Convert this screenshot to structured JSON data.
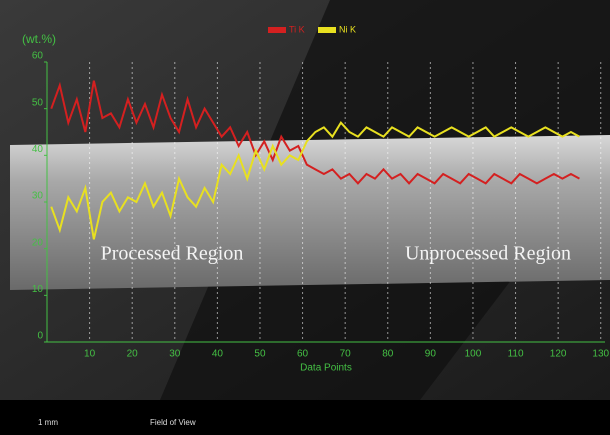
{
  "chart_data": {
    "type": "line",
    "y_label": "(wt.%)",
    "x_label": "Data Points",
    "x": [
      1,
      3,
      5,
      7,
      9,
      11,
      13,
      15,
      17,
      19,
      21,
      23,
      25,
      27,
      29,
      31,
      33,
      35,
      37,
      39,
      41,
      43,
      45,
      47,
      49,
      51,
      53,
      55,
      57,
      59,
      61,
      63,
      65,
      67,
      69,
      71,
      73,
      75,
      77,
      79,
      81,
      83,
      85,
      87,
      89,
      91,
      93,
      95,
      97,
      99,
      101,
      103,
      105,
      107,
      109,
      111,
      113,
      115,
      117,
      119,
      121,
      123,
      125
    ],
    "series": [
      {
        "name": "Ti K",
        "color": "#d42020",
        "values": [
          50,
          55,
          47,
          52,
          45,
          56,
          48,
          49,
          46,
          52,
          47,
          51,
          46,
          53,
          48,
          45,
          52,
          46,
          50,
          47,
          44,
          46,
          42,
          45,
          40,
          43,
          39,
          44,
          41,
          42,
          38,
          37,
          36,
          37,
          35,
          36,
          34,
          36,
          35,
          37,
          35,
          36,
          34,
          36,
          35,
          34,
          36,
          35,
          34,
          36,
          35,
          34,
          36,
          35,
          34,
          36,
          35,
          34,
          35,
          36,
          35,
          36,
          35
        ]
      },
      {
        "name": "Ni K",
        "color": "#e8e020",
        "values": [
          29,
          24,
          31,
          28,
          33,
          22,
          30,
          32,
          28,
          31,
          30,
          34,
          29,
          32,
          27,
          35,
          31,
          29,
          33,
          30,
          38,
          36,
          40,
          35,
          41,
          37,
          42,
          38,
          40,
          39,
          43,
          45,
          46,
          44,
          47,
          45,
          44,
          46,
          45,
          44,
          46,
          45,
          44,
          46,
          45,
          44,
          45,
          46,
          45,
          44,
          45,
          46,
          44,
          45,
          46,
          45,
          44,
          45,
          46,
          45,
          44,
          45,
          44
        ]
      }
    ],
    "xlim": [
      0,
      131
    ],
    "xticks": [
      10,
      20,
      30,
      40,
      50,
      60,
      70,
      80,
      90,
      100,
      110,
      120,
      130
    ],
    "ylim": [
      0,
      60
    ],
    "yticks": [
      0,
      10,
      20,
      30,
      40,
      50,
      60
    ],
    "grid": true,
    "legend": "top",
    "annotations": [
      "Processed Region",
      "Unprocessed Region"
    ],
    "scale_bar": "1 mm",
    "footer": "Field of View"
  }
}
